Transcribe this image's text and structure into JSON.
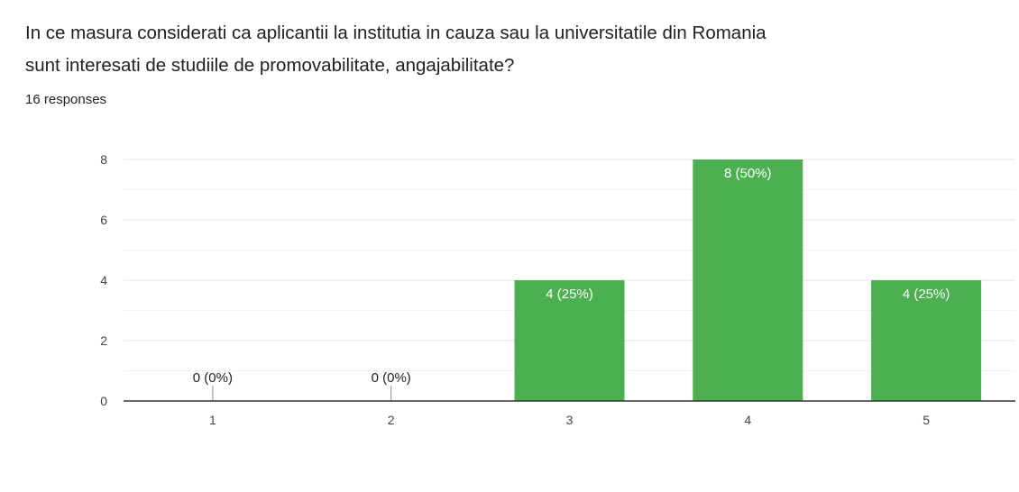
{
  "question": {
    "line1": "In ce masura considerati ca aplicantii la institutia in cauza sau la universitatile din Romania",
    "line2": "sunt interesati de studiile de promovabilitate, angajabilitate?"
  },
  "responses_label": "16 responses",
  "colors": {
    "bar": "#4caf50",
    "grid": "#e0e0e0",
    "axis": "#333333"
  },
  "chart_data": {
    "type": "bar",
    "categories": [
      "1",
      "2",
      "3",
      "4",
      "5"
    ],
    "values": [
      0,
      0,
      4,
      8,
      4
    ],
    "data_labels": [
      "0 (0%)",
      "0 (0%)",
      "4 (25%)",
      "8 (50%)",
      "4 (25%)"
    ],
    "yticks": [
      "0",
      "2",
      "4",
      "6",
      "8"
    ],
    "ylim": [
      0,
      8
    ],
    "grid": true,
    "title": "",
    "xlabel": "",
    "ylabel": ""
  }
}
